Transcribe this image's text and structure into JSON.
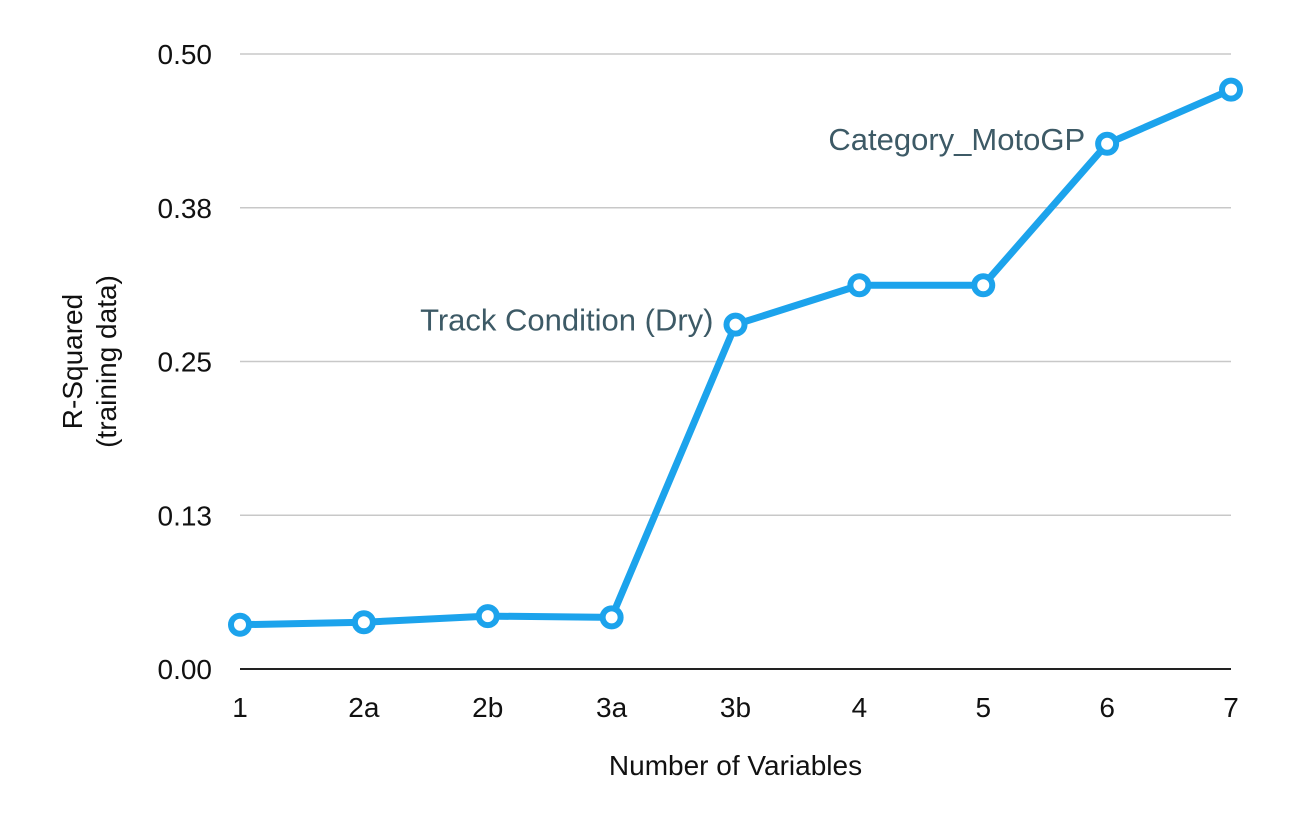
{
  "chart_data": {
    "type": "line",
    "title": "",
    "categories": [
      "1",
      "2a",
      "2b",
      "3a",
      "3b",
      "4",
      "5",
      "6",
      "7"
    ],
    "series": [
      {
        "values": [
          0.036,
          0.038,
          0.043,
          0.042,
          0.28,
          0.312,
          0.312,
          0.427,
          0.471
        ]
      }
    ],
    "ylim": [
      0,
      0.5
    ],
    "yticks": [
      0.0,
      0.125,
      0.25,
      0.375,
      0.5
    ],
    "ytick_labels": [
      "0.00",
      "0.13",
      "0.25",
      "0.38",
      "0.50"
    ],
    "xlabel": "Number of Variables",
    "ylabel_line1": "R-Squared",
    "ylabel_line2": "(training data)",
    "grid": true,
    "line_color": "#1ca3ec",
    "annotation_color": "#3d5a66",
    "annotations": [
      {
        "text": "Track Condition (Dry)",
        "category": "3b"
      },
      {
        "text": "Category_MotoGP",
        "category": "6"
      }
    ]
  }
}
